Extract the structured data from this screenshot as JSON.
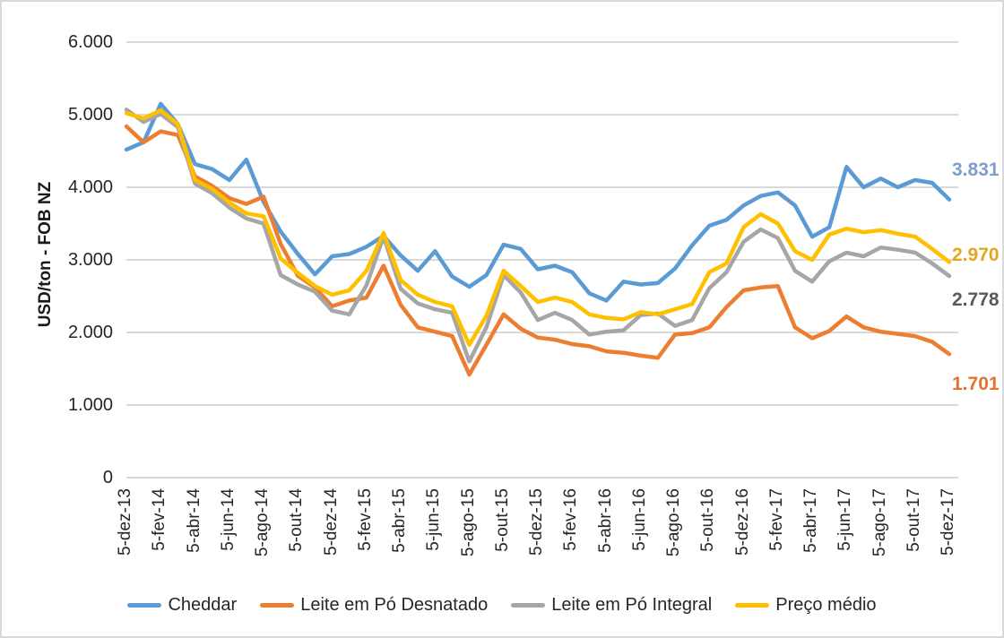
{
  "chart_data": {
    "type": "line",
    "title": "",
    "ylabel": "USD/ton - FOB NZ",
    "ylim": [
      0,
      6000
    ],
    "grid": true,
    "legend_position": "bottom",
    "y_tick_labels": [
      "0",
      "1.000",
      "2.000",
      "3.000",
      "4.000",
      "5.000",
      "6.000"
    ],
    "x_tick_labels": [
      "5-dez-13",
      "5-fev-14",
      "5-abr-14",
      "5-jun-14",
      "5-ago-14",
      "5-out-14",
      "5-dez-14",
      "5-fev-15",
      "5-abr-15",
      "5-jun-15",
      "5-ago-15",
      "5-out-15",
      "5-dez-15",
      "5-fev-16",
      "5-abr-16",
      "5-jun-16",
      "5-ago-16",
      "5-out-16",
      "5-dez-16",
      "5-fev-17",
      "5-abr-17",
      "5-jun-17",
      "5-ago-17",
      "5-out-17",
      "5-dez-17"
    ],
    "x": [
      "dez-13",
      "jan-14",
      "fev-14",
      "mar-14",
      "abr-14",
      "mai-14",
      "jun-14",
      "jul-14",
      "ago-14",
      "set-14",
      "out-14",
      "nov-14",
      "dez-14",
      "jan-15",
      "fev-15",
      "mar-15",
      "abr-15",
      "mai-15",
      "jun-15",
      "jul-15",
      "ago-15",
      "set-15",
      "out-15",
      "nov-15",
      "dez-15",
      "jan-16",
      "fev-16",
      "mar-16",
      "abr-16",
      "mai-16",
      "jun-16",
      "jul-16",
      "ago-16",
      "set-16",
      "out-16",
      "nov-16",
      "dez-16",
      "jan-17",
      "fev-17",
      "mar-17",
      "abr-17",
      "mai-17",
      "jun-17",
      "jul-17",
      "ago-17",
      "set-17",
      "out-17",
      "nov-17",
      "dez-17"
    ],
    "series": [
      {
        "name": "Cheddar",
        "color": "#5B9BD5",
        "label_color": "#7E9DC8",
        "end_label": "3.831",
        "values": [
          4520,
          4620,
          5150,
          4870,
          4320,
          4250,
          4100,
          4380,
          3800,
          3390,
          3080,
          2800,
          3050,
          3080,
          3180,
          3330,
          3060,
          2850,
          3120,
          2770,
          2630,
          2790,
          3210,
          3150,
          2870,
          2920,
          2830,
          2540,
          2440,
          2700,
          2660,
          2680,
          2880,
          3200,
          3470,
          3550,
          3750,
          3880,
          3930,
          3750,
          3320,
          3450,
          4280,
          4000,
          4120,
          4000,
          4100,
          4060,
          3831
        ]
      },
      {
        "name": "Leite em Pó Desnatado",
        "color": "#ED7D31",
        "label_color": "#E5722A",
        "end_label": "1.701",
        "values": [
          4840,
          4620,
          4770,
          4720,
          4150,
          4020,
          3850,
          3770,
          3870,
          3220,
          2780,
          2620,
          2360,
          2440,
          2480,
          2920,
          2380,
          2070,
          2010,
          1950,
          1420,
          1830,
          2250,
          2050,
          1930,
          1900,
          1840,
          1810,
          1740,
          1720,
          1680,
          1650,
          1970,
          1990,
          2070,
          2350,
          2580,
          2620,
          2640,
          2070,
          1920,
          2020,
          2220,
          2070,
          2010,
          1980,
          1950,
          1870,
          1701
        ]
      },
      {
        "name": "Leite em Pó Integral",
        "color": "#A6A6A6",
        "label_color": "#595959",
        "end_label": "2.778",
        "values": [
          5070,
          4900,
          5010,
          4830,
          4050,
          3920,
          3720,
          3570,
          3500,
          2790,
          2660,
          2560,
          2300,
          2250,
          2650,
          3320,
          2600,
          2400,
          2320,
          2270,
          1600,
          2070,
          2790,
          2550,
          2170,
          2270,
          2170,
          1970,
          2010,
          2030,
          2240,
          2260,
          2090,
          2170,
          2610,
          2830,
          3250,
          3420,
          3300,
          2850,
          2700,
          2980,
          3100,
          3050,
          3170,
          3140,
          3100,
          2950,
          2778
        ]
      },
      {
        "name": "Preço médio",
        "color": "#FFC000",
        "label_color": "#E6A421",
        "end_label": "2.970",
        "values": [
          5020,
          4950,
          5060,
          4870,
          4100,
          3980,
          3790,
          3640,
          3600,
          3020,
          2820,
          2640,
          2520,
          2580,
          2850,
          3370,
          2720,
          2520,
          2420,
          2360,
          1830,
          2230,
          2850,
          2640,
          2420,
          2480,
          2420,
          2250,
          2200,
          2180,
          2280,
          2250,
          2320,
          2390,
          2830,
          2950,
          3450,
          3630,
          3500,
          3120,
          3000,
          3350,
          3430,
          3380,
          3410,
          3360,
          3320,
          3150,
          2970
        ]
      }
    ]
  }
}
